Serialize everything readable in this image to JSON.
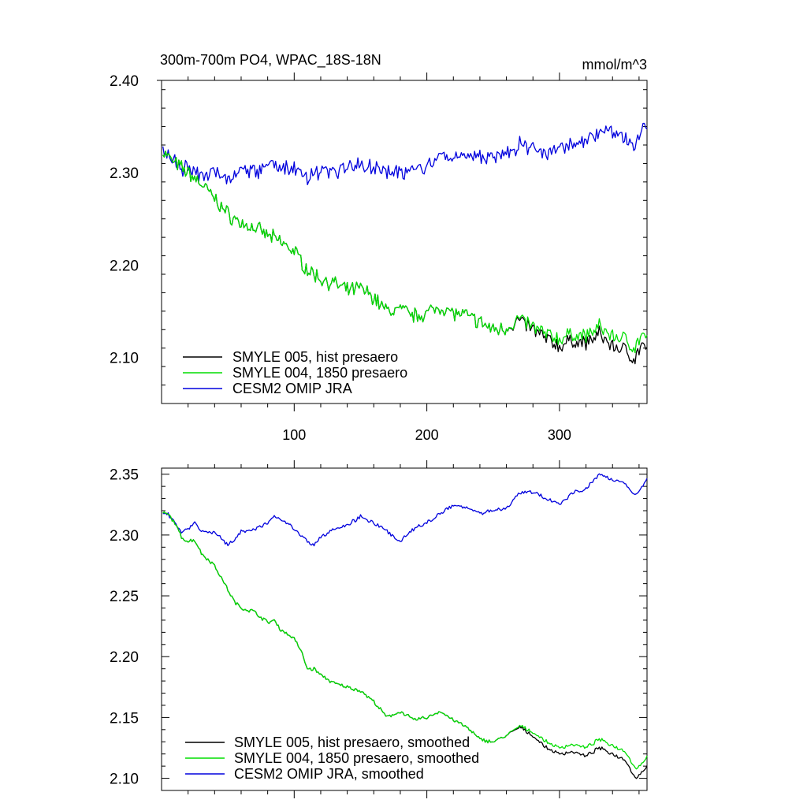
{
  "chart_data": [
    {
      "type": "line",
      "title": "300m-700m PO4, WPAC_18S-18N",
      "units": "mmol/m^3",
      "xlim": [
        0,
        366
      ],
      "ylim": [
        2.05,
        2.4
      ],
      "xticks": [
        100,
        200,
        300
      ],
      "xtick_labels": [
        "100",
        "200",
        "300"
      ],
      "yticks": [
        2.1,
        2.2,
        2.3,
        2.4
      ],
      "ytick_labels": [
        "2.10",
        "2.20",
        "2.30",
        "2.40"
      ],
      "legend_position": "bottom-left",
      "series": [
        {
          "name": "SMYLE 005, hist presaero",
          "color": "#000000",
          "keypoints": [
            [
              1,
              2.323
            ],
            [
              10,
              2.31
            ],
            [
              20,
              2.3
            ],
            [
              30,
              2.288
            ],
            [
              40,
              2.272
            ],
            [
              50,
              2.255
            ],
            [
              60,
              2.245
            ],
            [
              70,
              2.24
            ],
            [
              80,
              2.232
            ],
            [
              90,
              2.225
            ],
            [
              100,
              2.215
            ],
            [
              110,
              2.195
            ],
            [
              120,
              2.185
            ],
            [
              130,
              2.18
            ],
            [
              140,
              2.172
            ],
            [
              150,
              2.175
            ],
            [
              160,
              2.165
            ],
            [
              170,
              2.15
            ],
            [
              180,
              2.152
            ],
            [
              190,
              2.145
            ],
            [
              200,
              2.148
            ],
            [
              210,
              2.155
            ],
            [
              220,
              2.148
            ],
            [
              230,
              2.145
            ],
            [
              240,
              2.138
            ],
            [
              250,
              2.13
            ],
            [
              260,
              2.132
            ],
            [
              270,
              2.14
            ],
            [
              280,
              2.13
            ],
            [
              290,
              2.12
            ],
            [
              300,
              2.112
            ],
            [
              310,
              2.118
            ],
            [
              320,
              2.115
            ],
            [
              330,
              2.125
            ],
            [
              340,
              2.112
            ],
            [
              350,
              2.108
            ],
            [
              357,
              2.098
            ],
            [
              362,
              2.115
            ],
            [
              366,
              2.105
            ]
          ]
        },
        {
          "name": "SMYLE 004, 1850 presaero",
          "color": "#00dd00",
          "keypoints": [
            [
              1,
              2.323
            ],
            [
              10,
              2.31
            ],
            [
              20,
              2.3
            ],
            [
              30,
              2.288
            ],
            [
              40,
              2.272
            ],
            [
              50,
              2.255
            ],
            [
              60,
              2.245
            ],
            [
              70,
              2.24
            ],
            [
              80,
              2.232
            ],
            [
              90,
              2.225
            ],
            [
              100,
              2.215
            ],
            [
              110,
              2.195
            ],
            [
              120,
              2.185
            ],
            [
              130,
              2.18
            ],
            [
              140,
              2.172
            ],
            [
              150,
              2.175
            ],
            [
              160,
              2.165
            ],
            [
              170,
              2.15
            ],
            [
              180,
              2.152
            ],
            [
              190,
              2.145
            ],
            [
              200,
              2.148
            ],
            [
              210,
              2.155
            ],
            [
              220,
              2.148
            ],
            [
              230,
              2.145
            ],
            [
              240,
              2.138
            ],
            [
              250,
              2.13
            ],
            [
              260,
              2.132
            ],
            [
              270,
              2.142
            ],
            [
              280,
              2.133
            ],
            [
              290,
              2.125
            ],
            [
              300,
              2.12
            ],
            [
              310,
              2.125
            ],
            [
              320,
              2.123
            ],
            [
              330,
              2.133
            ],
            [
              340,
              2.123
            ],
            [
              350,
              2.12
            ],
            [
              357,
              2.11
            ],
            [
              362,
              2.125
            ],
            [
              366,
              2.118
            ]
          ]
        },
        {
          "name": "CESM2 OMIP JRA",
          "color": "#0000dd",
          "keypoints": [
            [
              1,
              2.323
            ],
            [
              10,
              2.31
            ],
            [
              20,
              2.303
            ],
            [
              30,
              2.298
            ],
            [
              40,
              2.3
            ],
            [
              50,
              2.292
            ],
            [
              60,
              2.302
            ],
            [
              70,
              2.3
            ],
            [
              80,
              2.308
            ],
            [
              90,
              2.305
            ],
            [
              100,
              2.305
            ],
            [
              110,
              2.295
            ],
            [
              120,
              2.302
            ],
            [
              130,
              2.3
            ],
            [
              140,
              2.305
            ],
            [
              150,
              2.31
            ],
            [
              160,
              2.305
            ],
            [
              170,
              2.302
            ],
            [
              180,
              2.3
            ],
            [
              190,
              2.305
            ],
            [
              200,
              2.305
            ],
            [
              210,
              2.315
            ],
            [
              220,
              2.318
            ],
            [
              230,
              2.32
            ],
            [
              240,
              2.318
            ],
            [
              250,
              2.315
            ],
            [
              260,
              2.32
            ],
            [
              270,
              2.33
            ],
            [
              280,
              2.325
            ],
            [
              290,
              2.322
            ],
            [
              300,
              2.325
            ],
            [
              310,
              2.332
            ],
            [
              320,
              2.335
            ],
            [
              330,
              2.345
            ],
            [
              340,
              2.342
            ],
            [
              350,
              2.338
            ],
            [
              357,
              2.33
            ],
            [
              362,
              2.35
            ],
            [
              366,
              2.345
            ]
          ]
        }
      ]
    },
    {
      "type": "line",
      "xlim": [
        0,
        366
      ],
      "ylim": [
        2.09,
        2.355
      ],
      "xticks": [
        100,
        200,
        300
      ],
      "yticks": [
        2.1,
        2.15,
        2.2,
        2.25,
        2.3,
        2.35
      ],
      "ytick_labels": [
        "2.10",
        "2.15",
        "2.20",
        "2.25",
        "2.30",
        "2.35"
      ],
      "legend_position": "bottom-left",
      "series": [
        {
          "name": "SMYLE 005, hist presaero, smoothed",
          "color": "#000000",
          "keypoints": [
            [
              1,
              2.318
            ],
            [
              5,
              2.317
            ],
            [
              10,
              2.31
            ],
            [
              15,
              2.298
            ],
            [
              20,
              2.295
            ],
            [
              25,
              2.296
            ],
            [
              30,
              2.285
            ],
            [
              40,
              2.275
            ],
            [
              50,
              2.255
            ],
            [
              55,
              2.245
            ],
            [
              60,
              2.24
            ],
            [
              70,
              2.237
            ],
            [
              80,
              2.228
            ],
            [
              85,
              2.23
            ],
            [
              90,
              2.222
            ],
            [
              100,
              2.215
            ],
            [
              105,
              2.205
            ],
            [
              110,
              2.19
            ],
            [
              115,
              2.19
            ],
            [
              120,
              2.185
            ],
            [
              130,
              2.178
            ],
            [
              140,
              2.175
            ],
            [
              150,
              2.172
            ],
            [
              160,
              2.163
            ],
            [
              170,
              2.15
            ],
            [
              180,
              2.155
            ],
            [
              190,
              2.148
            ],
            [
              200,
              2.15
            ],
            [
              210,
              2.155
            ],
            [
              220,
              2.148
            ],
            [
              230,
              2.142
            ],
            [
              240,
              2.132
            ],
            [
              250,
              2.13
            ],
            [
              260,
              2.135
            ],
            [
              270,
              2.142
            ],
            [
              280,
              2.135
            ],
            [
              290,
              2.125
            ],
            [
              300,
              2.12
            ],
            [
              310,
              2.122
            ],
            [
              320,
              2.118
            ],
            [
              330,
              2.125
            ],
            [
              340,
              2.12
            ],
            [
              350,
              2.115
            ],
            [
              357,
              2.1
            ],
            [
              362,
              2.105
            ],
            [
              366,
              2.11
            ]
          ]
        },
        {
          "name": "SMYLE 004, 1850 presaero, smoothed",
          "color": "#00dd00",
          "keypoints": [
            [
              1,
              2.318
            ],
            [
              5,
              2.317
            ],
            [
              10,
              2.31
            ],
            [
              15,
              2.298
            ],
            [
              20,
              2.295
            ],
            [
              25,
              2.296
            ],
            [
              30,
              2.285
            ],
            [
              40,
              2.275
            ],
            [
              50,
              2.255
            ],
            [
              55,
              2.245
            ],
            [
              60,
              2.24
            ],
            [
              70,
              2.237
            ],
            [
              80,
              2.228
            ],
            [
              85,
              2.23
            ],
            [
              90,
              2.222
            ],
            [
              100,
              2.215
            ],
            [
              105,
              2.205
            ],
            [
              110,
              2.19
            ],
            [
              115,
              2.19
            ],
            [
              120,
              2.185
            ],
            [
              130,
              2.178
            ],
            [
              140,
              2.175
            ],
            [
              150,
              2.172
            ],
            [
              160,
              2.163
            ],
            [
              170,
              2.15
            ],
            [
              180,
              2.155
            ],
            [
              190,
              2.148
            ],
            [
              200,
              2.15
            ],
            [
              210,
              2.155
            ],
            [
              220,
              2.148
            ],
            [
              230,
              2.142
            ],
            [
              240,
              2.132
            ],
            [
              250,
              2.13
            ],
            [
              260,
              2.135
            ],
            [
              270,
              2.143
            ],
            [
              280,
              2.138
            ],
            [
              290,
              2.13
            ],
            [
              300,
              2.125
            ],
            [
              310,
              2.128
            ],
            [
              320,
              2.125
            ],
            [
              330,
              2.132
            ],
            [
              340,
              2.127
            ],
            [
              350,
              2.122
            ],
            [
              357,
              2.108
            ],
            [
              362,
              2.112
            ],
            [
              366,
              2.118
            ]
          ]
        },
        {
          "name": "CESM2 OMIP JRA, smoothed",
          "color": "#0000dd",
          "keypoints": [
            [
              1,
              2.318
            ],
            [
              5,
              2.317
            ],
            [
              10,
              2.31
            ],
            [
              15,
              2.302
            ],
            [
              20,
              2.305
            ],
            [
              25,
              2.31
            ],
            [
              30,
              2.303
            ],
            [
              40,
              2.302
            ],
            [
              50,
              2.292
            ],
            [
              55,
              2.296
            ],
            [
              60,
              2.303
            ],
            [
              70,
              2.305
            ],
            [
              80,
              2.31
            ],
            [
              85,
              2.315
            ],
            [
              90,
              2.313
            ],
            [
              100,
              2.305
            ],
            [
              110,
              2.295
            ],
            [
              115,
              2.292
            ],
            [
              120,
              2.298
            ],
            [
              130,
              2.305
            ],
            [
              140,
              2.308
            ],
            [
              150,
              2.315
            ],
            [
              160,
              2.31
            ],
            [
              170,
              2.303
            ],
            [
              180,
              2.295
            ],
            [
              190,
              2.305
            ],
            [
              200,
              2.31
            ],
            [
              210,
              2.318
            ],
            [
              220,
              2.325
            ],
            [
              230,
              2.322
            ],
            [
              240,
              2.318
            ],
            [
              250,
              2.32
            ],
            [
              260,
              2.322
            ],
            [
              270,
              2.335
            ],
            [
              280,
              2.335
            ],
            [
              290,
              2.33
            ],
            [
              300,
              2.325
            ],
            [
              310,
              2.335
            ],
            [
              320,
              2.338
            ],
            [
              330,
              2.35
            ],
            [
              340,
              2.345
            ],
            [
              350,
              2.342
            ],
            [
              357,
              2.333
            ],
            [
              362,
              2.34
            ],
            [
              366,
              2.345
            ]
          ]
        }
      ]
    }
  ]
}
